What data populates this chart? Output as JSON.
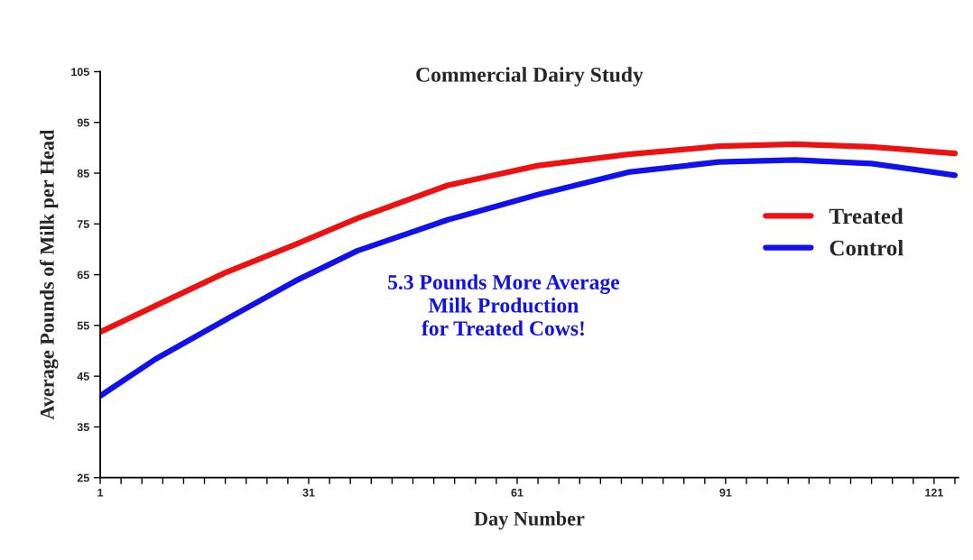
{
  "chart_data": {
    "type": "line",
    "title": "Commercial Dairy Study",
    "xlabel": "Day Number",
    "ylabel": "Average Pounds of Milk per Head",
    "x": [
      1,
      9,
      19,
      29,
      38,
      51,
      64,
      77,
      90,
      101,
      112,
      124
    ],
    "series": [
      {
        "name": "Treated",
        "color": "#ee1111",
        "values": [
          53.7,
          58.9,
          65.4,
          70.9,
          76.1,
          82.6,
          86.5,
          88.7,
          90.3,
          90.7,
          90.2,
          88.9
        ]
      },
      {
        "name": "Control",
        "color": "#1111ee",
        "values": [
          41.1,
          48.4,
          56.1,
          63.7,
          69.7,
          75.8,
          80.8,
          85.2,
          87.2,
          87.6,
          86.9,
          84.6
        ]
      }
    ],
    "xlim": [
      1,
      124.5
    ],
    "ylim": [
      25,
      105
    ],
    "xticks": [
      1,
      {
        "value": 4,
        "label": null
      },
      {
        "value": 7,
        "label": null
      },
      {
        "value": 10,
        "label": null
      },
      {
        "value": 13,
        "label": null
      },
      {
        "value": 16,
        "label": null
      },
      {
        "value": 19,
        "label": null
      },
      {
        "value": 22,
        "label": null
      },
      {
        "value": 25,
        "label": null
      },
      {
        "value": 28,
        "label": null
      },
      31,
      {
        "value": 34,
        "label": null
      },
      {
        "value": 37,
        "label": null
      },
      {
        "value": 40,
        "label": null
      },
      {
        "value": 43,
        "label": null
      },
      {
        "value": 46,
        "label": null
      },
      {
        "value": 49,
        "label": null
      },
      {
        "value": 52,
        "label": null
      },
      {
        "value": 55,
        "label": null
      },
      {
        "value": 58,
        "label": null
      },
      61,
      {
        "value": 64,
        "label": null
      },
      {
        "value": 67,
        "label": null
      },
      {
        "value": 70,
        "label": null
      },
      {
        "value": 73,
        "label": null
      },
      {
        "value": 76,
        "label": null
      },
      {
        "value": 79,
        "label": null
      },
      {
        "value": 82,
        "label": null
      },
      {
        "value": 85,
        "label": null
      },
      {
        "value": 88,
        "label": null
      },
      91,
      {
        "value": 94,
        "label": null
      },
      {
        "value": 97,
        "label": null
      },
      {
        "value": 100,
        "label": null
      },
      {
        "value": 103,
        "label": null
      },
      {
        "value": 106,
        "label": null
      },
      {
        "value": 109,
        "label": null
      },
      {
        "value": 112,
        "label": null
      },
      {
        "value": 115,
        "label": null
      },
      {
        "value": 118,
        "label": null
      },
      121,
      {
        "value": 124,
        "label": null
      }
    ],
    "yticks": [
      25,
      35,
      45,
      55,
      65,
      75,
      85,
      95,
      105
    ],
    "annotations": [
      "5.3 Pounds More Average\nMilk Production\nfor Treated Cows!"
    ],
    "legend": "right",
    "grid": false,
    "marker": "none",
    "line_style": "solid"
  }
}
